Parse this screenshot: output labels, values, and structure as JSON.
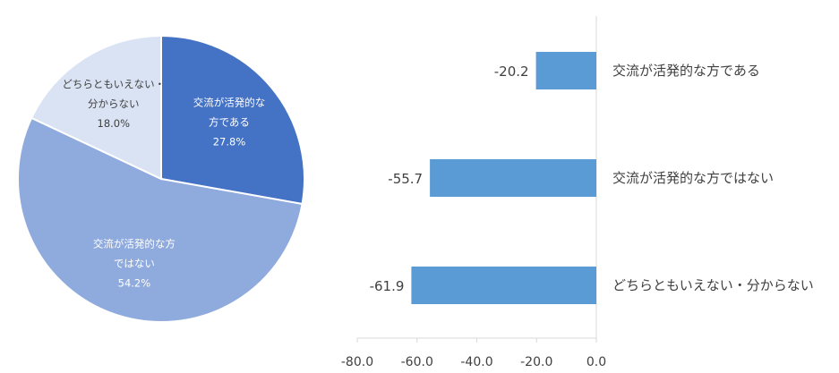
{
  "chart_data": [
    {
      "type": "pie",
      "title": "",
      "slices": [
        {
          "label_lines": [
            "交流が活発的な",
            "方である"
          ],
          "value": 27.8,
          "display": "27.8%",
          "color": "#4472c4",
          "label_color": "#ffffff"
        },
        {
          "label_lines": [
            "交流が活発的な方",
            "ではない"
          ],
          "value": 54.2,
          "display": "54.2%",
          "color": "#8faadc",
          "label_color": "#ffffff"
        },
        {
          "label_lines": [
            "どちらともいえない・",
            "分からない"
          ],
          "value": 18.0,
          "display": "18.0%",
          "color": "#dae3f3",
          "label_color": "#404040"
        }
      ]
    },
    {
      "type": "bar",
      "orientation": "horizontal",
      "title": "",
      "categories": [
        "交流が活発的な方である",
        "交流が活発的な方ではない",
        "どちらともいえない・分からない"
      ],
      "values": [
        -20.2,
        -55.7,
        -61.9
      ],
      "value_labels": [
        "-20.2",
        "-55.7",
        "-61.9"
      ],
      "xlim": [
        -80,
        0
      ],
      "ticks": [
        "-80.0",
        "-60.0",
        "-40.0",
        "-20.0",
        "0.0"
      ],
      "bar_color": "#5b9bd5",
      "grid": false
    }
  ]
}
